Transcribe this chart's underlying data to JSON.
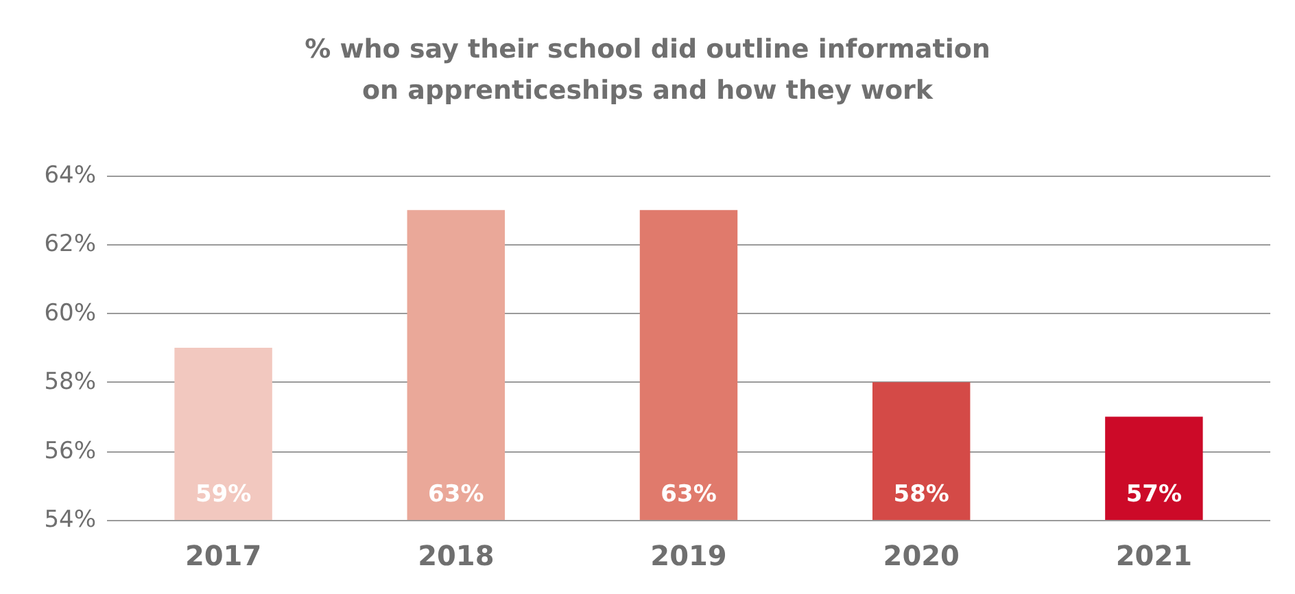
{
  "chart_data": {
    "type": "bar",
    "title": "% who say their school did outline information\non apprenticeships and how they work",
    "categories": [
      "2017",
      "2018",
      "2019",
      "2020",
      "2021"
    ],
    "values": [
      59,
      63,
      63,
      58,
      57
    ],
    "colors": [
      "#f2c8bf",
      "#eaa899",
      "#e07a6c",
      "#d44a47",
      "#cc0a28"
    ],
    "ylim": [
      54,
      64
    ],
    "yticks": [
      {
        "value": 54,
        "label": "54%"
      },
      {
        "value": 56,
        "label": "56%"
      },
      {
        "value": 58,
        "label": "58%"
      },
      {
        "value": 60,
        "label": "60%"
      },
      {
        "value": 62,
        "label": "62%"
      },
      {
        "value": 64,
        "label": "64%"
      }
    ],
    "value_labels": [
      "59%",
      "63%",
      "63%",
      "58%",
      "57%"
    ],
    "grid": "y"
  }
}
